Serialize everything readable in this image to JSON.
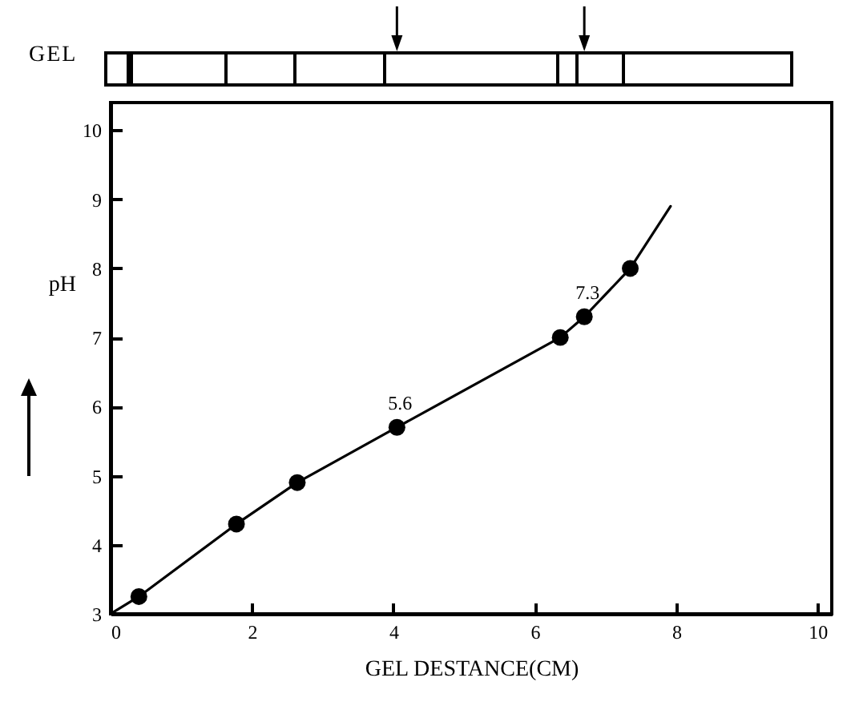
{
  "chart_data": {
    "type": "line",
    "xlabel": "GEL DESTANCE(CM)",
    "ylabel": "pH",
    "xlim": [
      0,
      10.2
    ],
    "ylim": [
      3,
      10.4
    ],
    "xticks": [
      0,
      2,
      4,
      6,
      8,
      10
    ],
    "yticks": [
      3,
      4,
      5,
      6,
      7,
      8,
      9,
      10
    ],
    "series": [
      {
        "type": "line",
        "color": "#000000",
        "marker": "none",
        "x": [
          0,
          0.4,
          1.78,
          2.64,
          4.05,
          6.36,
          6.7,
          7.35,
          7.92
        ],
        "values": [
          3,
          3.25,
          4.3,
          4.9,
          5.7,
          7.0,
          7.3,
          8.0,
          8.9
        ]
      },
      {
        "type": "scatter",
        "color": "#000000",
        "marker": "circle",
        "x": [
          0.4,
          1.78,
          2.64,
          4.05,
          6.36,
          6.7,
          7.35
        ],
        "values": [
          3.25,
          4.3,
          4.9,
          5.7,
          7.0,
          7.3,
          8.0
        ]
      }
    ],
    "annotations": [
      {
        "text": "5.6",
        "x": 4.05,
        "y": 5.7
      },
      {
        "text": "7.3",
        "x": 6.7,
        "y": 7.3
      },
      "GEL"
    ]
  }
}
